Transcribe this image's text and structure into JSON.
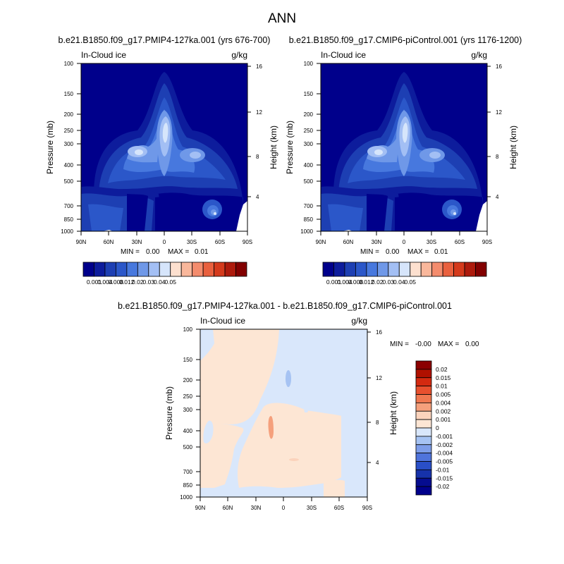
{
  "figure_title": "ANN",
  "chart_data": [
    {
      "type": "heatmap",
      "title": "b.e21.B1850.f09_g17.PMIP4-127ka.001 (yrs 676-700)",
      "left_label": "In-Cloud ice",
      "unit_label": "g/kg",
      "ylabel": "Pressure (mb)",
      "y2label": "Height (km)",
      "x_ticks": [
        "90N",
        "60N",
        "30N",
        "0",
        "30S",
        "60S",
        "90S"
      ],
      "y_ticks": [
        "100",
        "150",
        "200",
        "250",
        "300",
        "400",
        "500",
        "700",
        "850",
        "1000"
      ],
      "y2_ticks": [
        "16",
        "12",
        "8",
        "4"
      ],
      "min_label": "MIN =",
      "min_value": "0.00",
      "max_label": "MAX =",
      "max_value": "0.01",
      "colorbar_labels": [
        "0.001",
        "0.004",
        "0.008",
        "0.012",
        "0.02",
        "0.03",
        "0.04",
        "0.05"
      ],
      "colorbar_colors": [
        "#00008b",
        "#0d1c9c",
        "#1d3fb3",
        "#2b57c9",
        "#4778de",
        "#6f98e8",
        "#a3bff4",
        "#d6e5fb",
        "#fde0cf",
        "#f9b79b",
        "#f48c6d",
        "#e9603e",
        "#d43a1c",
        "#ad1a0c",
        "#820000"
      ]
    },
    {
      "type": "heatmap",
      "title": "b.e21.B1850.f09_g17.CMIP6-piControl.001 (yrs 1176-1200)",
      "left_label": "In-Cloud ice",
      "unit_label": "g/kg",
      "ylabel": "Pressure (mb)",
      "y2label": "Height (km)",
      "x_ticks": [
        "90N",
        "60N",
        "30N",
        "0",
        "30S",
        "60S",
        "90S"
      ],
      "y_ticks": [
        "100",
        "150",
        "200",
        "250",
        "300",
        "400",
        "500",
        "700",
        "850",
        "1000"
      ],
      "y2_ticks": [
        "16",
        "12",
        "8",
        "4"
      ],
      "min_label": "MIN =",
      "min_value": "0.00",
      "max_label": "MAX =",
      "max_value": "0.01",
      "colorbar_labels": [
        "0.001",
        "0.004",
        "0.008",
        "0.012",
        "0.02",
        "0.03",
        "0.04",
        "0.05"
      ],
      "colorbar_colors": [
        "#00008b",
        "#0d1c9c",
        "#1d3fb3",
        "#2b57c9",
        "#4778de",
        "#6f98e8",
        "#a3bff4",
        "#d6e5fb",
        "#fde0cf",
        "#f9b79b",
        "#f48c6d",
        "#e9603e",
        "#d43a1c",
        "#ad1a0c",
        "#820000"
      ]
    },
    {
      "type": "heatmap",
      "title": "b.e21.B1850.f09_g17.PMIP4-127ka.001 - b.e21.B1850.f09_g17.CMIP6-piControl.001",
      "left_label": "In-Cloud ice",
      "unit_label": "g/kg",
      "ylabel": "Pressure (mb)",
      "y2label": "Height (km)",
      "x_ticks": [
        "90N",
        "60N",
        "30N",
        "0",
        "30S",
        "60S",
        "90S"
      ],
      "y_ticks": [
        "100",
        "150",
        "200",
        "250",
        "300",
        "400",
        "500",
        "700",
        "850",
        "1000"
      ],
      "y2_ticks": [
        "16",
        "12",
        "8",
        "4"
      ],
      "min_label": "MIN =",
      "min_value": "-0.00",
      "max_label": "MAX =",
      "max_value": "0.00",
      "colorbar_labels": [
        "0.02",
        "0.015",
        "0.01",
        "0.005",
        "0.004",
        "0.002",
        "0.001",
        "0",
        "-0.001",
        "-0.002",
        "-0.004",
        "-0.005",
        "-0.01",
        "-0.015",
        "-0.02"
      ],
      "colorbar_colors": [
        "#8b0000",
        "#b01000",
        "#d42a10",
        "#e8502e",
        "#f07850",
        "#f5a07c",
        "#fbd3bc",
        "#fde6d4",
        "#d9e7fb",
        "#a6c3f3",
        "#7d9de9",
        "#4f74dc",
        "#2a4fc8",
        "#1632aa",
        "#050c8f",
        "#00008b"
      ]
    }
  ]
}
